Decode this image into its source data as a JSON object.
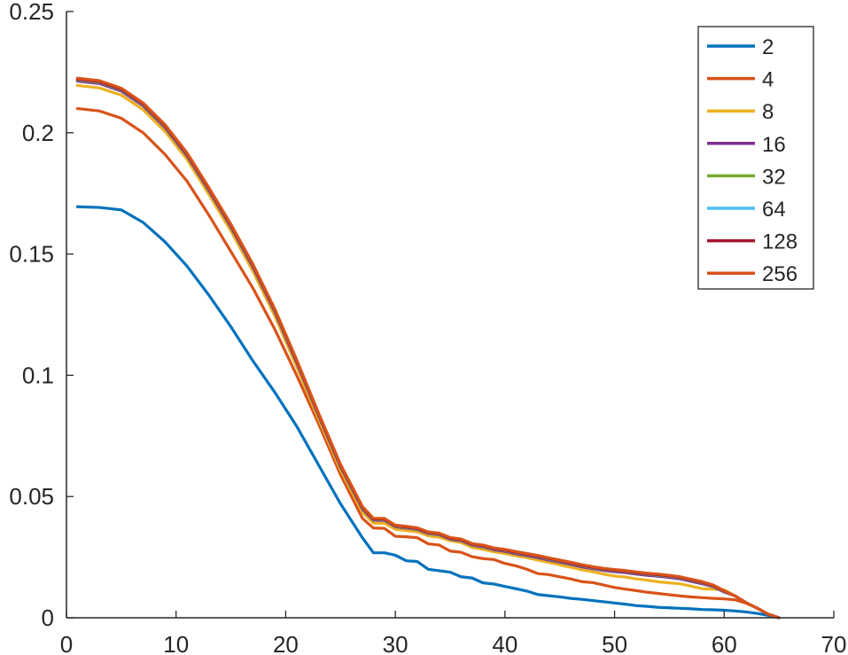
{
  "chart_data": {
    "type": "line",
    "title": "",
    "xlabel": "",
    "ylabel": "",
    "xlim": [
      0,
      70
    ],
    "ylim": [
      0,
      0.25
    ],
    "xticks": [
      0,
      10,
      20,
      30,
      40,
      50,
      60,
      70
    ],
    "yticks": [
      0,
      0.05,
      0.1,
      0.15,
      0.2,
      0.25
    ],
    "xtick_labels": [
      "0",
      "10",
      "20",
      "30",
      "40",
      "50",
      "60",
      "70"
    ],
    "ytick_labels": [
      "0",
      "0.05",
      "0.1",
      "0.15",
      "0.2",
      "0.25"
    ],
    "grid": false,
    "legend_position": "top-right",
    "x": [
      1,
      3,
      5,
      7,
      9,
      11,
      13,
      15,
      17,
      19,
      21,
      23,
      25,
      27,
      28,
      29,
      30,
      31,
      32,
      33,
      34,
      35,
      36,
      37,
      38,
      39,
      40,
      41,
      42,
      43,
      44,
      45,
      46,
      47,
      48,
      49,
      50,
      51,
      52,
      53,
      54,
      55,
      56,
      57,
      58,
      59,
      60,
      61,
      62,
      63,
      64,
      65
    ],
    "series": [
      {
        "name": "2",
        "color": "#0072BD",
        "values": [
          0.1695,
          0.1692,
          0.1682,
          0.163,
          0.155,
          0.145,
          0.133,
          0.12,
          0.106,
          0.093,
          0.079,
          0.063,
          0.047,
          0.033,
          0.0268,
          0.0268,
          0.0258,
          0.0235,
          0.0232,
          0.02,
          0.0194,
          0.0188,
          0.0169,
          0.0164,
          0.0144,
          0.0139,
          0.0129,
          0.012,
          0.011,
          0.0096,
          0.0091,
          0.0086,
          0.008,
          0.0076,
          0.0071,
          0.0066,
          0.0061,
          0.0056,
          0.005,
          0.0047,
          0.0043,
          0.0041,
          0.0039,
          0.0037,
          0.0034,
          0.0033,
          0.0031,
          0.0028,
          0.0024,
          0.0018,
          0.001,
          0.0
        ]
      },
      {
        "name": "4",
        "color": "#D95319",
        "values": [
          0.21,
          0.209,
          0.206,
          0.2,
          0.191,
          0.18,
          0.166,
          0.151,
          0.136,
          0.119,
          0.1,
          0.08,
          0.059,
          0.041,
          0.037,
          0.0369,
          0.0336,
          0.0334,
          0.033,
          0.0305,
          0.03,
          0.0275,
          0.027,
          0.0252,
          0.0244,
          0.024,
          0.0224,
          0.0214,
          0.02,
          0.0182,
          0.0178,
          0.0169,
          0.016,
          0.0149,
          0.0145,
          0.0135,
          0.0125,
          0.0118,
          0.0112,
          0.0105,
          0.01,
          0.0095,
          0.009,
          0.0086,
          0.0083,
          0.008,
          0.0078,
          0.0074,
          0.006,
          0.004,
          0.0015,
          0.0
        ]
      },
      {
        "name": "8",
        "color": "#EDB120",
        "values": [
          0.2195,
          0.2185,
          0.2155,
          0.2095,
          0.2005,
          0.189,
          0.1745,
          0.1595,
          0.143,
          0.1245,
          0.1035,
          0.082,
          0.061,
          0.0435,
          0.039,
          0.039,
          0.0365,
          0.036,
          0.0355,
          0.0338,
          0.0332,
          0.0318,
          0.031,
          0.029,
          0.0282,
          0.0272,
          0.0265,
          0.0255,
          0.0248,
          0.0238,
          0.0228,
          0.0218,
          0.0208,
          0.0198,
          0.019,
          0.018,
          0.0172,
          0.0168,
          0.016,
          0.0155,
          0.0148,
          0.0144,
          0.014,
          0.013,
          0.012,
          0.0118,
          0.0115,
          0.009,
          0.0062,
          0.004,
          0.0015,
          0.0
        ]
      },
      {
        "name": "16",
        "color": "#7E2F8E",
        "values": [
          0.2213,
          0.2203,
          0.2172,
          0.2111,
          0.2021,
          0.1905,
          0.1761,
          0.1611,
          0.1447,
          0.1262,
          0.1052,
          0.0833,
          0.0622,
          0.0448,
          0.0402,
          0.0402,
          0.0375,
          0.037,
          0.0364,
          0.0347,
          0.0342,
          0.0324,
          0.0318,
          0.0299,
          0.0292,
          0.028,
          0.0274,
          0.0264,
          0.0256,
          0.0248,
          0.0238,
          0.0229,
          0.022,
          0.021,
          0.0202,
          0.0195,
          0.019,
          0.0186,
          0.018,
          0.0175,
          0.0171,
          0.0166,
          0.016,
          0.015,
          0.014,
          0.0128,
          0.0106,
          0.009,
          0.0062,
          0.004,
          0.0015,
          0.0
        ]
      },
      {
        "name": "32",
        "color": "#77AC30",
        "values": [
          0.2218,
          0.2208,
          0.2177,
          0.2116,
          0.2026,
          0.191,
          0.1766,
          0.1616,
          0.1452,
          0.1267,
          0.1057,
          0.0837,
          0.0626,
          0.0452,
          0.0405,
          0.0405,
          0.0377,
          0.0372,
          0.0366,
          0.0349,
          0.0344,
          0.0326,
          0.032,
          0.0301,
          0.0295,
          0.0283,
          0.0277,
          0.0268,
          0.026,
          0.0252,
          0.0242,
          0.0233,
          0.0224,
          0.0214,
          0.0206,
          0.0199,
          0.0194,
          0.019,
          0.0184,
          0.0179,
          0.0175,
          0.017,
          0.0164,
          0.0154,
          0.0144,
          0.013,
          0.0108,
          0.009,
          0.0062,
          0.004,
          0.0015,
          0.0
        ]
      },
      {
        "name": "64",
        "color": "#4DBEEE",
        "values": [
          0.222,
          0.221,
          0.2179,
          0.2118,
          0.2028,
          0.1912,
          0.1768,
          0.1618,
          0.1454,
          0.1269,
          0.1059,
          0.0839,
          0.0628,
          0.0454,
          0.0406,
          0.0406,
          0.0378,
          0.0373,
          0.0367,
          0.035,
          0.0345,
          0.0327,
          0.0321,
          0.0302,
          0.0296,
          0.0284,
          0.0278,
          0.0269,
          0.0261,
          0.0253,
          0.0243,
          0.0234,
          0.0225,
          0.0215,
          0.0207,
          0.02,
          0.0195,
          0.0191,
          0.0185,
          0.018,
          0.0176,
          0.0171,
          0.0165,
          0.0155,
          0.0145,
          0.0131,
          0.0109,
          0.009,
          0.0062,
          0.004,
          0.0015,
          0.0
        ]
      },
      {
        "name": "128",
        "color": "#A2142F",
        "values": [
          0.2221,
          0.2211,
          0.218,
          0.2119,
          0.2029,
          0.1913,
          0.1769,
          0.1619,
          0.1455,
          0.127,
          0.106,
          0.084,
          0.0629,
          0.0455,
          0.0407,
          0.0407,
          0.0379,
          0.0374,
          0.0368,
          0.0351,
          0.0346,
          0.0328,
          0.0322,
          0.0303,
          0.0297,
          0.0285,
          0.0279,
          0.027,
          0.0262,
          0.0254,
          0.0244,
          0.0235,
          0.0226,
          0.0216,
          0.0208,
          0.0201,
          0.0196,
          0.0192,
          0.0186,
          0.0181,
          0.0177,
          0.0172,
          0.0166,
          0.0156,
          0.0146,
          0.0132,
          0.011,
          0.009,
          0.0062,
          0.004,
          0.0015,
          0.0
        ]
      },
      {
        "name": "256",
        "color": "#D95319",
        "values": [
          0.2225,
          0.2215,
          0.2184,
          0.2123,
          0.2033,
          0.1917,
          0.1773,
          0.1623,
          0.1459,
          0.1274,
          0.1064,
          0.0844,
          0.0633,
          0.0459,
          0.041,
          0.041,
          0.0382,
          0.0377,
          0.0371,
          0.0354,
          0.0349,
          0.0331,
          0.0325,
          0.0306,
          0.03,
          0.0288,
          0.0282,
          0.0273,
          0.0265,
          0.0257,
          0.0247,
          0.0238,
          0.0229,
          0.0219,
          0.0211,
          0.0204,
          0.0199,
          0.0195,
          0.0189,
          0.0184,
          0.018,
          0.0175,
          0.0169,
          0.0159,
          0.0149,
          0.0135,
          0.0112,
          0.009,
          0.0062,
          0.004,
          0.0015,
          0.0
        ]
      }
    ]
  }
}
